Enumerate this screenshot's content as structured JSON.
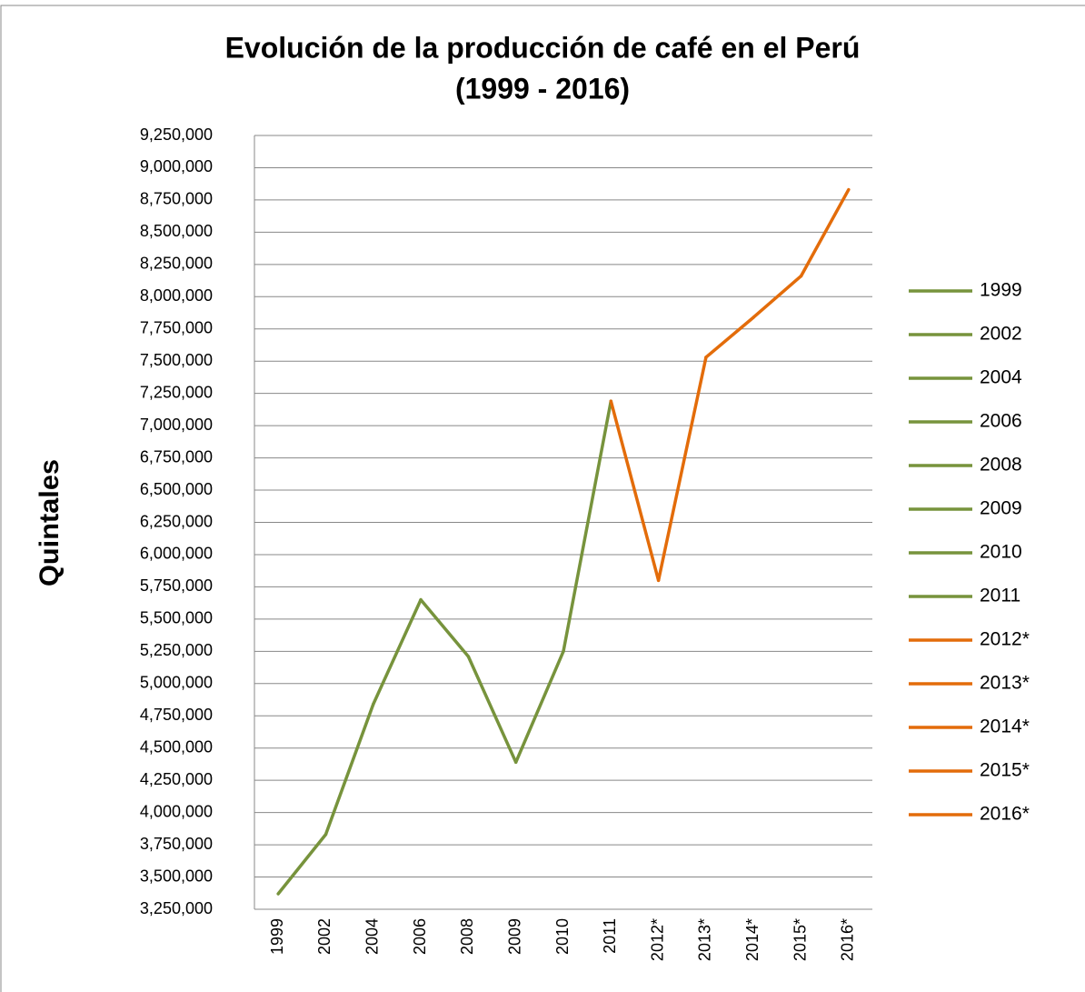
{
  "chart_data": {
    "type": "line",
    "title": "Evolución de la producción de café en el Perú",
    "subtitle": "(1999 - 2016)",
    "y_label": "Quintales",
    "categories": [
      "1999",
      "2002",
      "2004",
      "2006",
      "2008",
      "2009",
      "2010",
      "2011",
      "2012*",
      "2013*",
      "2014*",
      "2015*",
      "2016*"
    ],
    "values": [
      3370000,
      3830000,
      4840000,
      5650000,
      5210000,
      4390000,
      5250000,
      7190000,
      5800000,
      7530000,
      7840000,
      8160000,
      8830000
    ],
    "colors": [
      "#77933c",
      "#77933c",
      "#77933c",
      "#77933c",
      "#77933c",
      "#77933c",
      "#77933c",
      "#77933c",
      "#e36c0a",
      "#e36c0a",
      "#e36c0a",
      "#e36c0a",
      "#e36c0a"
    ],
    "ylim": [
      3250000,
      9250000
    ],
    "yticks": [
      {
        "value": 3250000,
        "label": "3,250,000"
      },
      {
        "value": 3500000,
        "label": "3,500,000"
      },
      {
        "value": 3750000,
        "label": "3,750,000"
      },
      {
        "value": 4000000,
        "label": "4,000,000"
      },
      {
        "value": 4250000,
        "label": "4,250,000"
      },
      {
        "value": 4500000,
        "label": "4,500,000"
      },
      {
        "value": 4750000,
        "label": "4,750,000"
      },
      {
        "value": 5000000,
        "label": "5,000,000"
      },
      {
        "value": 5250000,
        "label": "5,250,000"
      },
      {
        "value": 5500000,
        "label": "5,500,000"
      },
      {
        "value": 5750000,
        "label": "5,750,000"
      },
      {
        "value": 6000000,
        "label": "6,000,000"
      },
      {
        "value": 6250000,
        "label": "6,250,000"
      },
      {
        "value": 6500000,
        "label": "6,500,000"
      },
      {
        "value": 6750000,
        "label": "6,750,000"
      },
      {
        "value": 7000000,
        "label": "7,000,000"
      },
      {
        "value": 7250000,
        "label": "7,250,000"
      },
      {
        "value": 7500000,
        "label": "7,500,000"
      },
      {
        "value": 7750000,
        "label": "7,750,000"
      },
      {
        "value": 8000000,
        "label": "8,000,000"
      },
      {
        "value": 8250000,
        "label": "8,250,000"
      },
      {
        "value": 8500000,
        "label": "8,500,000"
      },
      {
        "value": 8750000,
        "label": "8,750,000"
      },
      {
        "value": 9000000,
        "label": "9,000,000"
      },
      {
        "value": 9250000,
        "label": "9,250,000"
      }
    ],
    "grid": true,
    "legend": "right"
  }
}
